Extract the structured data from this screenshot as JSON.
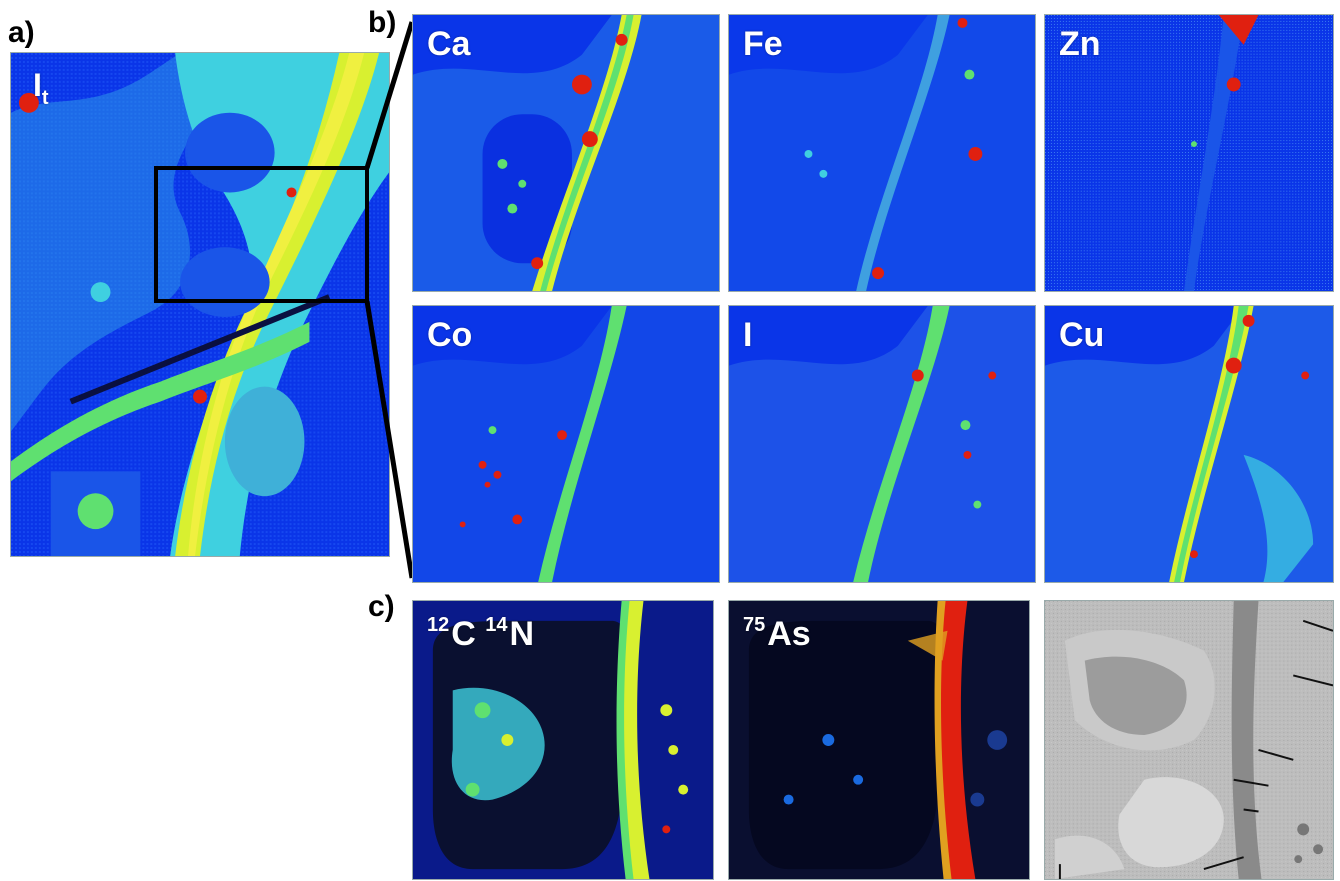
{
  "caption_fragment": "",
  "panels": {
    "a": {
      "letter": "a)",
      "map_label_main": "I",
      "map_label_sub": "t"
    },
    "b": {
      "letter": "b)",
      "maps": [
        {
          "label": "Ca"
        },
        {
          "label": "Fe"
        },
        {
          "label": "Zn"
        },
        {
          "label": "Co"
        },
        {
          "label": "I"
        },
        {
          "label": "Cu"
        }
      ]
    },
    "c": {
      "letter": "c)",
      "maps": [
        {
          "iso1": "12",
          "el1": "C",
          "iso2": "14",
          "el2": "N"
        },
        {
          "iso1": "75",
          "el1": "As"
        }
      ]
    }
  },
  "colors": {
    "background_blue": "#0a2ff0",
    "cyan": "#3fd0e0",
    "green": "#5fe070",
    "yellow": "#d8f030",
    "red": "#e02010",
    "dark_navy": "#0a1040",
    "tem_gray": "#b4b4b4"
  }
}
